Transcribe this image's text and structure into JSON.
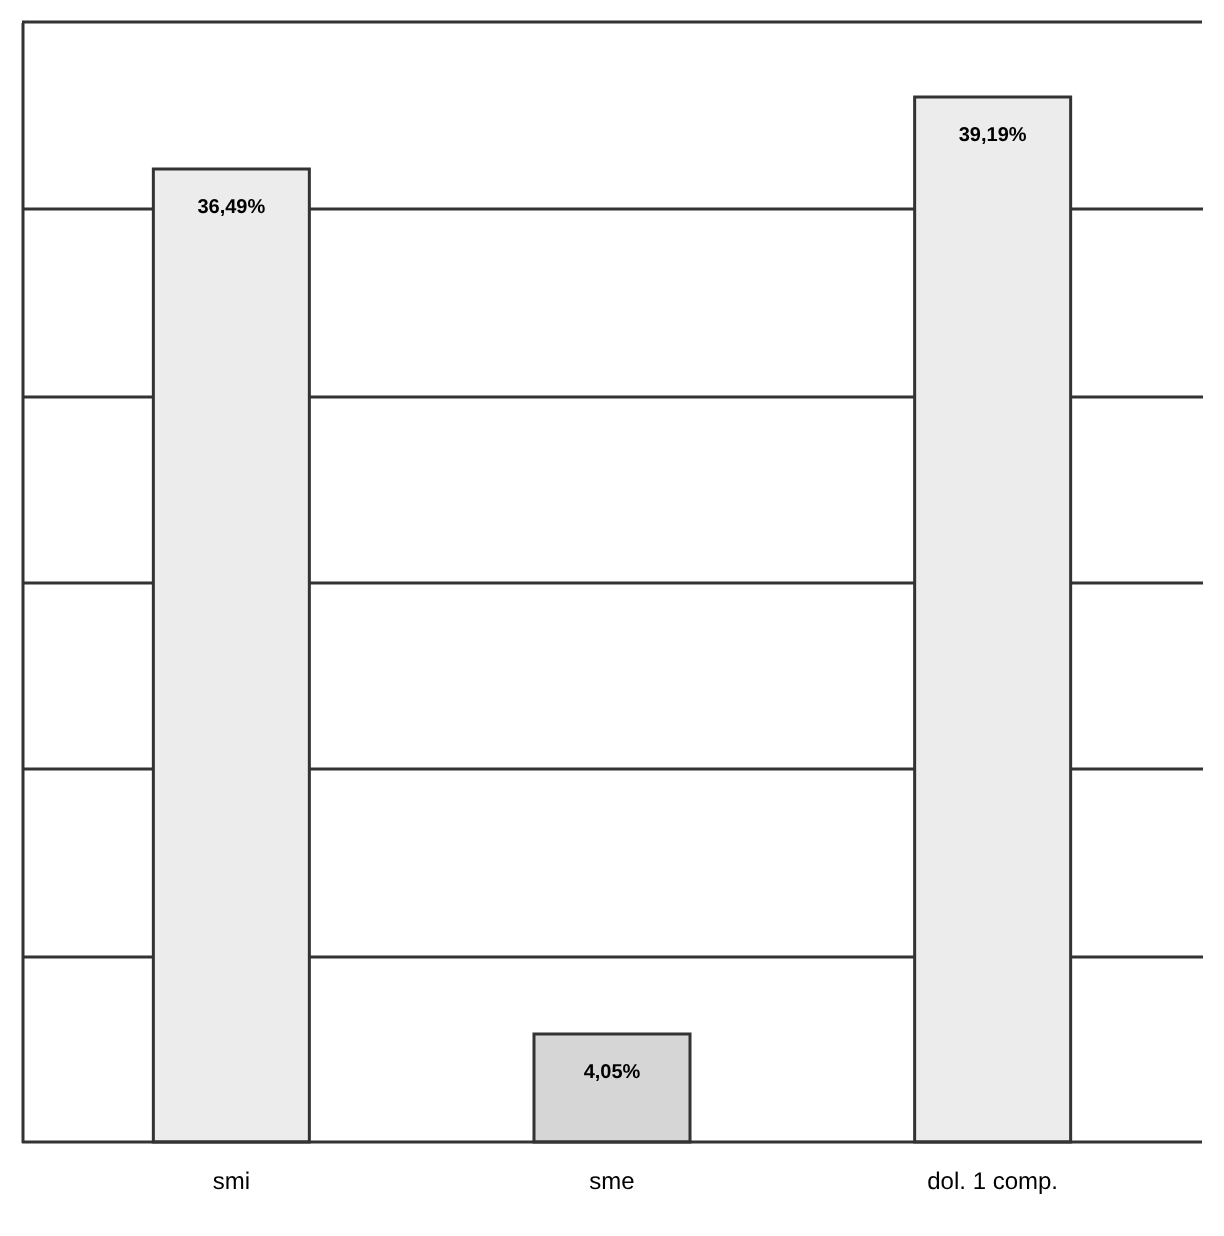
{
  "chart_data": {
    "type": "bar",
    "categories": [
      "smi",
      "sme",
      "dol. 1 comp."
    ],
    "values": [
      36.49,
      4.05,
      39.19
    ],
    "value_labels": [
      "36,49%",
      "4,05%",
      "39,19%"
    ],
    "colors": [
      "#ececec",
      "#d6d6d6",
      "#ececec"
    ],
    "ylim": [
      0,
      42
    ],
    "yticks": [
      {
        "value": 7,
        "label": null
      },
      {
        "value": 14,
        "label": null
      },
      {
        "value": 21,
        "label": null
      },
      {
        "value": 28,
        "label": null
      },
      {
        "value": 35,
        "label": null
      }
    ],
    "grid": "y"
  }
}
